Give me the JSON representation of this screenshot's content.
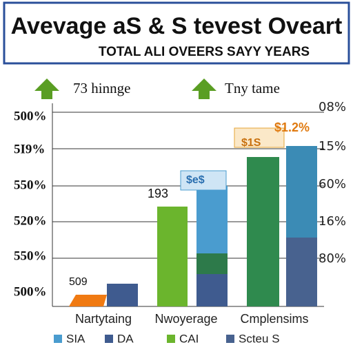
{
  "header": {
    "title": "Avevage aS & S tevest Oveart",
    "subtitle": "TOTAL ALI OVEERS SAYY YEARS"
  },
  "annotations": [
    "73 hinnge",
    "Tny tame"
  ],
  "left_axis_labels": [
    "500%",
    "5I9%",
    "550%",
    "520%",
    "550%",
    "500%"
  ],
  "right_axis_labels": [
    "08%",
    "15%",
    "60%",
    "16%",
    "80%"
  ],
  "bar_labels": [
    "509",
    "193",
    "$1.2%",
    "$1S",
    "$e$"
  ],
  "categories": [
    "Nartytaing",
    "Nwoyerage",
    "Cmplensims"
  ],
  "legend": [
    "SIA",
    "DA",
    "CAI",
    "Scteu S"
  ]
}
